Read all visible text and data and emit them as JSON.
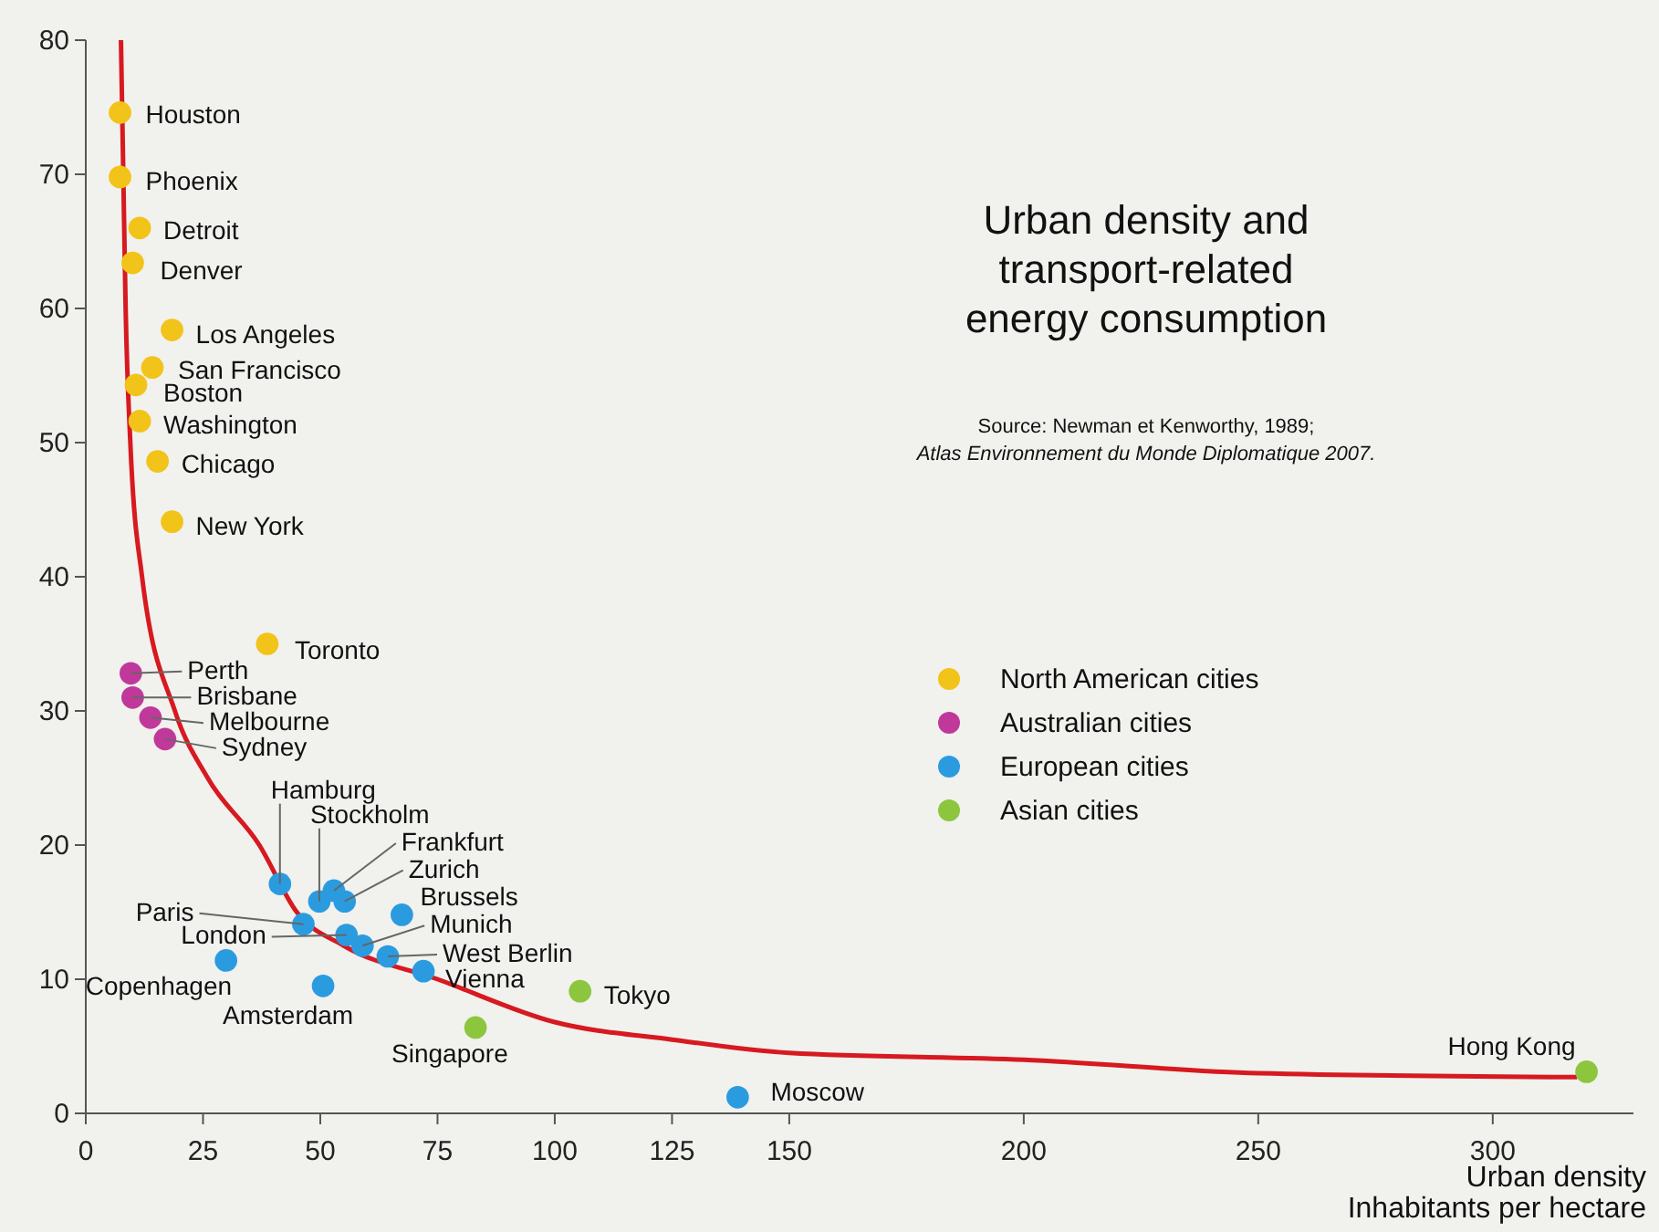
{
  "chart_data": {
    "type": "scatter",
    "title": "Urban density and transport-related energy consumption",
    "xlabel": "Urban density\nInhabitants per hectare",
    "xlim": [
      0,
      330
    ],
    "ylim": [
      0,
      80
    ],
    "xticks": [
      0,
      25,
      50,
      75,
      100,
      125,
      150,
      200,
      250,
      300
    ],
    "yticks": [
      0,
      10,
      20,
      30,
      40,
      50,
      60,
      70,
      80
    ],
    "grid": false,
    "legend": "right",
    "marker": "circle",
    "series": [
      {
        "name": "North American cities",
        "color": "#f2c318",
        "x": [
          7.3,
          7.3,
          11.5,
          10,
          18.4,
          14.2,
          10.7,
          11.5,
          15.3,
          18.4,
          38.7
        ],
        "values": [
          74.6,
          69.8,
          66,
          63.4,
          58.4,
          55.6,
          54.3,
          51.6,
          48.6,
          44.1,
          35
        ]
      },
      {
        "name": "Australian cities",
        "color": "#c0399a",
        "x": [
          9.6,
          10,
          13.8,
          16.9
        ],
        "values": [
          32.8,
          31,
          29.5,
          27.9
        ]
      },
      {
        "name": "European cities",
        "color": "#2b9be0",
        "x": [
          41.4,
          49.8,
          52.9,
          55.2,
          67.4,
          46.4,
          55.6,
          59,
          64.4,
          72,
          29.9,
          50.6,
          139
        ],
        "values": [
          17.1,
          15.8,
          16.6,
          15.8,
          14.8,
          14.1,
          13.3,
          12.5,
          11.7,
          10.6,
          11.4,
          9.5,
          1.2
        ]
      },
      {
        "name": "Asian cities",
        "color": "#8cc63f",
        "x": [
          83.1,
          105.4,
          320
        ],
        "values": [
          6.4,
          9.1,
          3.1
        ]
      },
      {
        "type": "line",
        "color": "#d71920",
        "marker": "none",
        "x": [
          7.5,
          8,
          8.5,
          9.5,
          12,
          19,
          26,
          37,
          45,
          55,
          75,
          100,
          125,
          150,
          200,
          250,
          318
        ],
        "values": [
          80,
          70,
          60,
          50,
          40,
          30,
          25,
          20,
          15,
          12.5,
          10,
          6.8,
          5.5,
          4.5,
          4,
          3,
          2.7
        ]
      }
    ],
    "annotations": [
      {
        "text": "Houston",
        "x": 7.3,
        "y": 74.6
      },
      {
        "text": "Phoenix",
        "x": 7.3,
        "y": 69.8
      },
      {
        "text": "Detroit",
        "x": 11.5,
        "y": 66
      },
      {
        "text": "Denver",
        "x": 10,
        "y": 63.4
      },
      {
        "text": "Los Angeles",
        "x": 18.4,
        "y": 58.4
      },
      {
        "text": "San Francisco",
        "x": 14.2,
        "y": 55.6
      },
      {
        "text": "Boston",
        "x": 10.7,
        "y": 54.3
      },
      {
        "text": "Washington",
        "x": 11.5,
        "y": 51.6
      },
      {
        "text": "Chicago",
        "x": 15.3,
        "y": 48.6
      },
      {
        "text": "New York",
        "x": 18.4,
        "y": 44.1
      },
      {
        "text": "Toronto",
        "x": 38.7,
        "y": 35
      },
      {
        "text": "Perth",
        "x": 9.6,
        "y": 32.8
      },
      {
        "text": "Brisbane",
        "x": 10,
        "y": 31
      },
      {
        "text": "Melbourne",
        "x": 13.8,
        "y": 29.5
      },
      {
        "text": "Sydney",
        "x": 16.9,
        "y": 27.9
      },
      {
        "text": "Hamburg",
        "x": 41.4,
        "y": 17.1
      },
      {
        "text": "Stockholm",
        "x": 49.8,
        "y": 15.8
      },
      {
        "text": "Frankfurt",
        "x": 52.9,
        "y": 16.6
      },
      {
        "text": "Zurich",
        "x": 55.2,
        "y": 15.8
      },
      {
        "text": "Brussels",
        "x": 67.4,
        "y": 14.8
      },
      {
        "text": "Paris",
        "x": 46.4,
        "y": 14.1
      },
      {
        "text": "London",
        "x": 55.6,
        "y": 13.3
      },
      {
        "text": "Munich",
        "x": 59,
        "y": 12.5
      },
      {
        "text": "West Berlin",
        "x": 64.4,
        "y": 11.7
      },
      {
        "text": "Vienna",
        "x": 72,
        "y": 10.6
      },
      {
        "text": "Copenhagen",
        "x": 29.9,
        "y": 11.4
      },
      {
        "text": "Amsterdam",
        "x": 50.6,
        "y": 9.5
      },
      {
        "text": "Moscow",
        "x": 139,
        "y": 1.2
      },
      {
        "text": "Singapore",
        "x": 83.1,
        "y": 6.4
      },
      {
        "text": "Tokyo",
        "x": 105.4,
        "y": 9.1
      },
      {
        "text": "Hong Kong",
        "x": 320,
        "y": 3.1
      },
      "Source: Newman et Kenworthy, 1989;",
      "Atlas Environnement du Monde Diplomatique 2007."
    ]
  }
}
